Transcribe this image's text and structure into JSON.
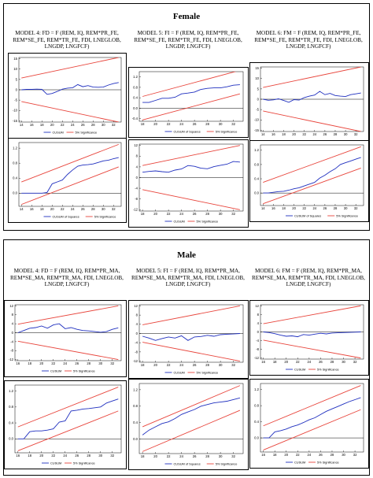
{
  "sections": [
    {
      "heading": "Female",
      "titles": [
        "MODEL 4: FD = F (REM, IQ, REM*PR_FE, REM*SE_FE, REM*TR_FE, FDI, LNEGLOB, LNGDP, LNGFCF)",
        "MODEL 5: FI = F (REM, IQ, REM*PR_FE, REM*SE_FE, REM*TR_FE, FDI, LNEGLOB, LNGDP, LNGFCF)",
        "MODEL 6: FM = F (REM, IQ, REM*PR_FE, REM*SE_FE, REM*TR_FE, FDI, LNEGLOB, LNGDP, LNGFCF)"
      ]
    },
    {
      "heading": "Male",
      "titles": [
        "MODEL 4: FD = F (REM, IQ, REM*PR_MA, REM*SE_MA, REM*TR_MA, FDI, LNEGLOB, LNGDP, LNGFCF)",
        "MODEL 5: FI = F (REM, IQ, REM*PR_MA, REM*SE_MA, REM*TR_MA, FDI, LNEGLOB, LNGDP, LNGFCF)",
        "MODEL 6: FM = F (REM, IQ, REM*PR_MA, REM*SE_MA, REM*TR_MA, FDI, LNEGLOB, LNGDP, LNGFCF)"
      ]
    }
  ],
  "legend_labels": {
    "cusum": "CUSUM",
    "cusumsq": "CUSUM of Squares",
    "sig": "5% Significance"
  },
  "colors": {
    "series": "#1f2fbf",
    "bounds": "#e8453c",
    "zero": "#000000"
  },
  "chart_data": [
    {
      "id": "female-m4-cusum",
      "type": "line",
      "x": [
        14,
        15,
        16,
        17,
        18,
        19,
        20,
        21,
        22,
        23,
        24,
        25,
        26,
        27,
        28,
        29,
        30,
        31,
        32,
        33
      ],
      "y": [
        0,
        0.2,
        0.2,
        0.3,
        0.2,
        -2.2,
        -1.8,
        -0.8,
        0.3,
        0.8,
        1.0,
        2.5,
        1.5,
        2.0,
        1.3,
        1.2,
        1.3,
        2.3,
        3.0,
        3.5
      ],
      "bounds": [
        [
          14,
          -5.7,
          5.7
        ],
        [
          33,
          -15.6,
          15.6
        ]
      ],
      "yticks": [
        -15,
        -10,
        -5,
        0,
        5,
        10,
        15
      ],
      "xticks": [
        14,
        16,
        18,
        20,
        22,
        24,
        26,
        28,
        30,
        32
      ],
      "ylim": [
        -15.6,
        15.6
      ],
      "xlim": [
        13.5,
        33.5
      ],
      "legend": [
        "CUSUM",
        "5% Significance"
      ]
    },
    {
      "id": "female-m5-cusumsq",
      "type": "line",
      "x": [
        18,
        19,
        20,
        21,
        22,
        23,
        24,
        25,
        26,
        27,
        28,
        29,
        30,
        31,
        32,
        33
      ],
      "y": [
        0.22,
        0.22,
        0.3,
        0.38,
        0.38,
        0.42,
        0.55,
        0.58,
        0.62,
        0.72,
        0.76,
        0.78,
        0.78,
        0.82,
        0.88,
        0.9
      ],
      "bounds": [
        [
          18,
          -0.45,
          0.45
        ],
        [
          33,
          0.55,
          1.45
        ]
      ],
      "yticks": [
        -0.4,
        0.0,
        0.4,
        0.8,
        1.2
      ],
      "xticks": [
        18,
        20,
        22,
        24,
        26,
        28,
        30,
        32
      ],
      "ylim": [
        -0.5,
        1.4
      ],
      "xlim": [
        17.5,
        33.5
      ],
      "legend": [
        "CUSUM of Squares",
        "5% Significance"
      ]
    },
    {
      "id": "female-m6-cusum",
      "type": "line",
      "x": [
        14,
        15,
        16,
        17,
        18,
        19,
        20,
        21,
        22,
        23,
        24,
        25,
        26,
        27,
        28,
        29,
        30,
        31,
        32,
        33
      ],
      "y": [
        0,
        -0.5,
        -0.3,
        0.2,
        -0.6,
        -1.5,
        -0.2,
        -0.4,
        0.8,
        1.5,
        2.0,
        3.8,
        2.2,
        2.8,
        1.8,
        1.5,
        1.3,
        2.2,
        2.6,
        3.0
      ],
      "bounds": [
        [
          14,
          -5.7,
          5.7
        ],
        [
          33,
          -15.6,
          15.6
        ]
      ],
      "yticks": [
        -15,
        -10,
        -5,
        0,
        5,
        10,
        15
      ],
      "xticks": [
        14,
        16,
        18,
        20,
        22,
        24,
        26,
        28,
        30,
        32
      ],
      "ylim": [
        -15.6,
        15.6
      ],
      "xlim": [
        13.5,
        33.5
      ],
      "legend": [
        "CUSUM",
        "5% Significance"
      ]
    },
    {
      "id": "female-m4-cusumsq",
      "type": "line",
      "x": [
        14,
        15,
        16,
        17,
        18,
        19,
        20,
        21,
        22,
        23,
        24,
        25,
        26,
        27,
        28,
        29,
        30,
        31,
        32,
        33
      ],
      "y": [
        0,
        0,
        0,
        0,
        0,
        0.02,
        0.25,
        0.3,
        0.35,
        0.5,
        0.62,
        0.72,
        0.75,
        0.76,
        0.78,
        0.82,
        0.86,
        0.88,
        0.92,
        0.95
      ],
      "bounds": [
        [
          14,
          -0.3,
          0.3
        ],
        [
          33,
          0.7,
          1.3
        ]
      ],
      "yticks": [
        0.0,
        0.4,
        0.8,
        1.2
      ],
      "xticks": [
        14,
        16,
        18,
        20,
        22,
        24,
        26,
        28,
        30,
        32
      ],
      "ylim": [
        -0.35,
        1.35
      ],
      "xlim": [
        13.5,
        33.5
      ],
      "legend": [
        "CUSUM of Squares",
        "5% Significance"
      ]
    },
    {
      "id": "female-m5-cusum",
      "type": "line",
      "x": [
        18,
        19,
        20,
        21,
        22,
        23,
        24,
        25,
        26,
        27,
        28,
        29,
        30,
        31,
        32,
        33
      ],
      "y": [
        2,
        2.3,
        2.5,
        2.2,
        2.0,
        2.8,
        3.2,
        4.5,
        4.2,
        3.5,
        3.3,
        4.1,
        4.6,
        5.0,
        6.0,
        5.8
      ],
      "bounds": [
        [
          18,
          -4.5,
          4.5
        ],
        [
          33,
          -12,
          12
        ]
      ],
      "yticks": [
        -12,
        -8,
        -4,
        0,
        4,
        8,
        12
      ],
      "xticks": [
        18,
        20,
        22,
        24,
        26,
        28,
        30,
        32
      ],
      "ylim": [
        -12.5,
        12.5
      ],
      "xlim": [
        17.5,
        33.5
      ],
      "legend": [
        "CUSUM",
        "5% Significance"
      ]
    },
    {
      "id": "female-m6-cusumsq",
      "type": "line",
      "x": [
        14,
        15,
        16,
        17,
        18,
        19,
        20,
        21,
        22,
        23,
        24,
        25,
        26,
        27,
        28,
        29,
        30,
        31,
        32,
        33
      ],
      "y": [
        0,
        0,
        0.02,
        0.04,
        0.05,
        0.08,
        0.12,
        0.15,
        0.2,
        0.25,
        0.3,
        0.42,
        0.5,
        0.6,
        0.68,
        0.8,
        0.85,
        0.9,
        0.95,
        1.0
      ],
      "bounds": [
        [
          14,
          -0.3,
          0.3
        ],
        [
          33,
          0.7,
          1.3
        ]
      ],
      "yticks": [
        0.0,
        0.4,
        0.8,
        1.2
      ],
      "xticks": [
        14,
        16,
        18,
        20,
        22,
        24,
        26,
        28,
        30,
        32
      ],
      "ylim": [
        -0.35,
        1.35
      ],
      "xlim": [
        13.5,
        33.5
      ],
      "legend": [
        "CUSUM of Squares",
        "5% Significance"
      ]
    },
    {
      "id": "male-m4-cusum",
      "type": "line",
      "x": [
        16,
        17,
        18,
        19,
        20,
        21,
        22,
        23,
        24,
        25,
        26,
        27,
        28,
        29,
        30,
        31,
        32,
        33
      ],
      "y": [
        0,
        1.0,
        2.0,
        2.3,
        3.0,
        2.0,
        3.5,
        4.0,
        1.8,
        2.3,
        1.5,
        1.0,
        0.8,
        0.5,
        0.2,
        0.5,
        1.5,
        2.2
      ],
      "bounds": [
        [
          16,
          -3.8,
          3.8
        ],
        [
          33,
          -12,
          12
        ]
      ],
      "yticks": [
        -12,
        -8,
        -4,
        0,
        4,
        8,
        12
      ],
      "xticks": [
        16,
        18,
        20,
        22,
        24,
        26,
        28,
        30,
        32
      ],
      "ylim": [
        -12.5,
        12.5
      ],
      "xlim": [
        15.5,
        33.5
      ],
      "legend": [
        "CUSUM",
        "5% Significance"
      ]
    },
    {
      "id": "male-m5-cusum",
      "type": "line",
      "x": [
        18,
        19,
        20,
        21,
        22,
        23,
        24,
        25,
        26,
        27,
        28,
        29,
        30,
        31,
        32,
        33
      ],
      "y": [
        -1.2,
        -2.0,
        -3.0,
        -2.2,
        -1.5,
        -2.0,
        -1.0,
        -3.0,
        -1.5,
        -1.3,
        -0.8,
        -1.2,
        -0.5,
        -0.3,
        -0.2,
        0
      ],
      "bounds": [
        [
          18,
          -3.8,
          3.8
        ],
        [
          33,
          -12,
          12
        ]
      ],
      "yticks": [
        -12,
        -8,
        -4,
        0,
        4,
        8,
        12
      ],
      "xticks": [
        18,
        20,
        22,
        24,
        26,
        28,
        30,
        32
      ],
      "ylim": [
        -12.5,
        12.5
      ],
      "xlim": [
        17.5,
        33.5
      ],
      "legend": [
        "CUSUM",
        "5% Significance"
      ]
    },
    {
      "id": "male-m6-cusum",
      "type": "line",
      "x": [
        16,
        17,
        18,
        19,
        20,
        21,
        22,
        23,
        24,
        25,
        26,
        27,
        28,
        29,
        30,
        31,
        32,
        33
      ],
      "y": [
        0,
        -0.3,
        -0.8,
        -1.5,
        -2.0,
        -1.8,
        -2.2,
        -1.2,
        -1.5,
        -1.0,
        -0.6,
        -0.9,
        -0.5,
        -0.4,
        -0.3,
        -0.2,
        -0.1,
        0
      ],
      "bounds": [
        [
          16,
          -3.8,
          3.8
        ],
        [
          33,
          -12,
          12
        ]
      ],
      "yticks": [
        -12,
        -8,
        -4,
        0,
        4,
        8,
        12
      ],
      "xticks": [
        16,
        18,
        20,
        22,
        24,
        26,
        28,
        30,
        32
      ],
      "ylim": [
        -12.5,
        12.5
      ],
      "xlim": [
        15.5,
        33.5
      ],
      "legend": [
        "CUSUM",
        "5% Significance"
      ]
    },
    {
      "id": "male-m4-cusumsq",
      "type": "line",
      "x": [
        16,
        17,
        18,
        19,
        20,
        21,
        22,
        23,
        24,
        25,
        26,
        27,
        28,
        29,
        30,
        31,
        32,
        33
      ],
      "y": [
        0,
        0,
        0.18,
        0.2,
        0.2,
        0.22,
        0.25,
        0.42,
        0.45,
        0.7,
        0.72,
        0.75,
        0.76,
        0.78,
        0.8,
        0.9,
        0.95,
        1.0
      ],
      "bounds": [
        [
          16,
          -0.3,
          0.3
        ],
        [
          33,
          0.7,
          1.3
        ]
      ],
      "yticks": [
        0.0,
        0.4,
        0.8,
        1.2
      ],
      "xticks": [
        16,
        18,
        20,
        22,
        24,
        26,
        28,
        30,
        32
      ],
      "ylim": [
        -0.35,
        1.35
      ],
      "xlim": [
        15.5,
        33.5
      ],
      "legend": [
        "CUSUM",
        "5% Significance"
      ]
    },
    {
      "id": "male-m5-cusumsq",
      "type": "line",
      "x": [
        18,
        19,
        20,
        21,
        22,
        23,
        24,
        25,
        26,
        27,
        28,
        29,
        30,
        31,
        32,
        33
      ],
      "y": [
        0.1,
        0.22,
        0.3,
        0.38,
        0.42,
        0.5,
        0.6,
        0.66,
        0.72,
        0.8,
        0.84,
        0.88,
        0.9,
        0.92,
        0.96,
        1.0
      ],
      "bounds": [
        [
          18,
          -0.3,
          0.3
        ],
        [
          33,
          0.7,
          1.3
        ]
      ],
      "yticks": [
        0.0,
        0.4,
        0.8,
        1.2
      ],
      "xticks": [
        18,
        20,
        22,
        24,
        26,
        28,
        30,
        32
      ],
      "ylim": [
        -0.35,
        1.35
      ],
      "xlim": [
        17.5,
        33.5
      ],
      "legend": [
        "CUSUM of Squares",
        "5% Significance"
      ]
    },
    {
      "id": "male-m6-cusumsq",
      "type": "line",
      "x": [
        16,
        17,
        18,
        19,
        20,
        21,
        22,
        23,
        24,
        25,
        26,
        27,
        28,
        29,
        30,
        31,
        32,
        33
      ],
      "y": [
        0,
        0,
        0.15,
        0.18,
        0.22,
        0.28,
        0.32,
        0.38,
        0.45,
        0.5,
        0.58,
        0.66,
        0.72,
        0.78,
        0.84,
        0.9,
        0.95,
        1.0
      ],
      "bounds": [
        [
          16,
          -0.3,
          0.3
        ],
        [
          33,
          0.7,
          1.3
        ]
      ],
      "yticks": [
        0.0,
        0.4,
        0.8,
        1.2
      ],
      "xticks": [
        16,
        18,
        20,
        22,
        24,
        26,
        28,
        30,
        32
      ],
      "ylim": [
        -0.35,
        1.35
      ],
      "xlim": [
        15.5,
        33.5
      ],
      "legend": [
        "CUSUM",
        "5% Significance"
      ]
    }
  ]
}
